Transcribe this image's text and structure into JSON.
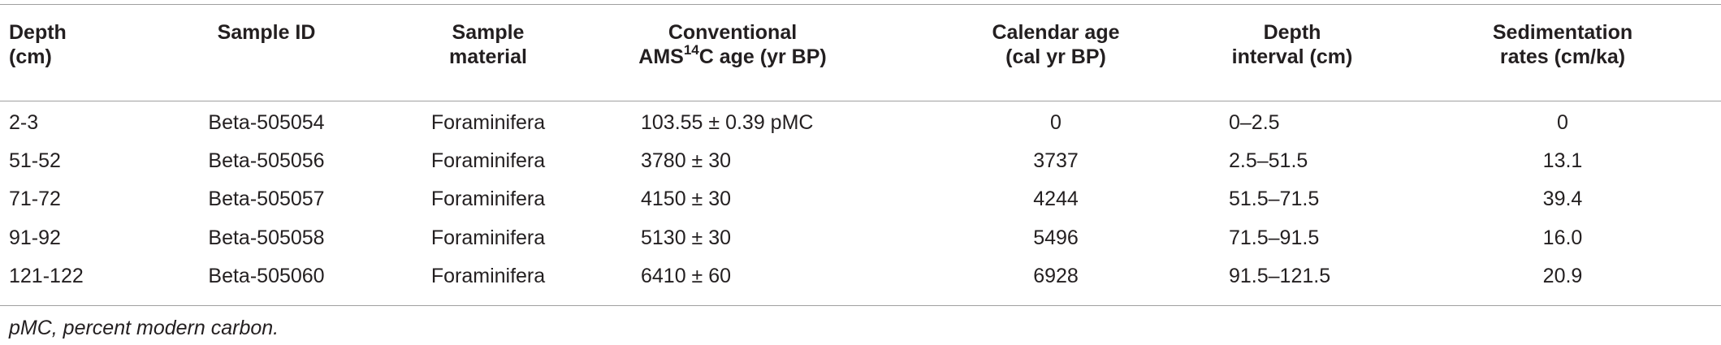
{
  "table": {
    "header": {
      "depth": [
        "Depth",
        "(cm)"
      ],
      "sample_id": "Sample ID",
      "material": [
        "Sample",
        "material"
      ],
      "age": {
        "line1": "Conventional",
        "pre": "AMS",
        "sup": "14",
        "post": "C age (yr BP)"
      },
      "calendar": [
        "Calendar age",
        "(cal yr BP)"
      ],
      "interval": [
        "Depth",
        "interval (cm)"
      ],
      "sedimentation": [
        "Sedimentation",
        "rates (cm/ka)"
      ]
    },
    "rows": [
      [
        "2-3",
        "Beta-505054",
        "Foraminifera",
        "103.55 ± 0.39 pMC",
        "0",
        "0–2.5",
        "0"
      ],
      [
        "51-52",
        "Beta-505056",
        "Foraminifera",
        "3780 ± 30",
        "3737",
        "2.5–51.5",
        "13.1"
      ],
      [
        "71-72",
        "Beta-505057",
        "Foraminifera",
        "4150 ± 30",
        "4244",
        "51.5–71.5",
        "39.4"
      ],
      [
        "91-92",
        "Beta-505058",
        "Foraminifera",
        "5130 ± 30",
        "5496",
        "71.5–91.5",
        "16.0"
      ],
      [
        "121-122",
        "Beta-505060",
        "Foraminifera",
        "6410 ± 60",
        "6928",
        "91.5–121.5",
        "20.9"
      ]
    ],
    "footnote": "pMC, percent modern carbon."
  }
}
